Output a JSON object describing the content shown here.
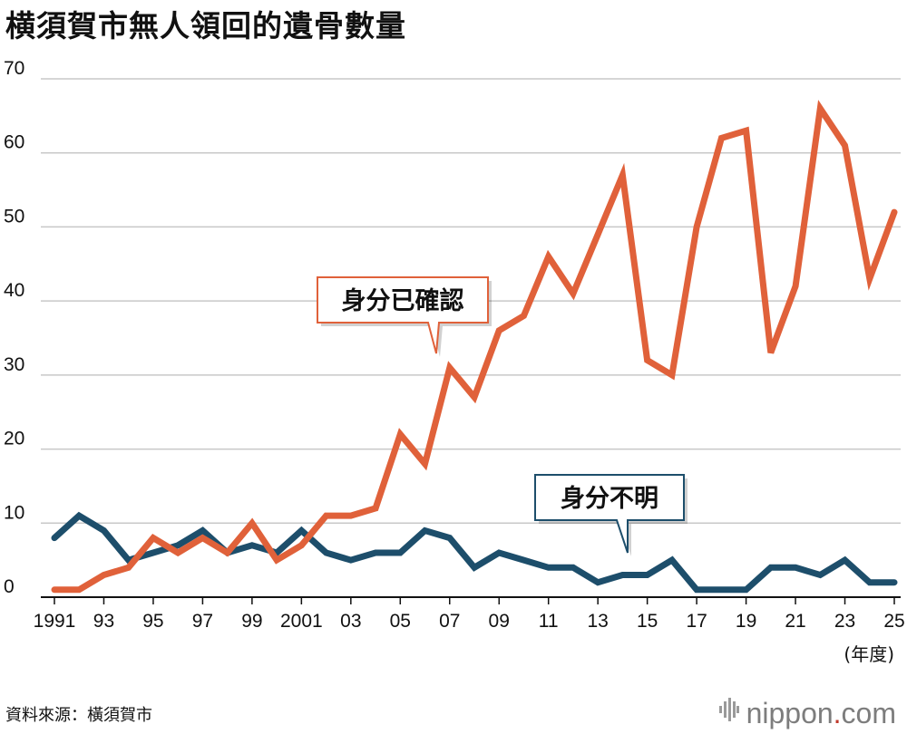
{
  "title": "横須賀市無人領回的遺骨數量",
  "source": "資料來源：橫須賀市",
  "brand": {
    "name": "nippon",
    "dot": ".",
    "suffix": "com"
  },
  "colors": {
    "identified": "#e0613a",
    "unidentified": "#1d4e6b",
    "grid": "#c8c8c8",
    "axis": "#111111"
  },
  "chart_data": {
    "type": "line",
    "title": "横須賀市無人領回的遺骨數量",
    "x": [
      1991,
      1992,
      1993,
      1994,
      1995,
      1996,
      1997,
      1998,
      1999,
      2000,
      2001,
      2002,
      2003,
      2004,
      2005,
      2006,
      2007,
      2008,
      2009,
      2010,
      2011,
      2012,
      2013,
      2014,
      2015,
      2016,
      2017,
      2018,
      2019,
      2020,
      2021,
      2022,
      2023,
      2024,
      2025
    ],
    "x_tick_values": [
      1991,
      1993,
      1995,
      1997,
      1999,
      2001,
      2003,
      2005,
      2007,
      2009,
      2011,
      2013,
      2015,
      2017,
      2019,
      2021,
      2023,
      2025
    ],
    "x_tick_labels": [
      "1991",
      "93",
      "95",
      "97",
      "99",
      "2001",
      "03",
      "05",
      "07",
      "09",
      "11",
      "13",
      "15",
      "17",
      "19",
      "21",
      "23",
      "25"
    ],
    "x_unit_label": "(年度)",
    "ylim": [
      0,
      70
    ],
    "y_ticks": [
      0,
      10,
      20,
      30,
      40,
      50,
      60,
      70
    ],
    "grid": true,
    "series": [
      {
        "name": "身分已確認",
        "color": "#e0613a",
        "values": [
          1,
          1,
          3,
          4,
          8,
          6,
          8,
          6,
          10,
          5,
          7,
          11,
          11,
          12,
          22,
          18,
          31,
          27,
          36,
          38,
          46,
          41,
          49,
          57,
          32,
          30,
          50,
          62,
          63,
          33,
          42,
          66,
          61,
          43,
          52
        ]
      },
      {
        "name": "身分不明",
        "color": "#1d4e6b",
        "values": [
          8,
          11,
          9,
          5,
          6,
          7,
          9,
          6,
          7,
          6,
          9,
          6,
          5,
          6,
          6,
          9,
          8,
          4,
          6,
          5,
          4,
          4,
          2,
          3,
          3,
          5,
          1,
          1,
          1,
          4,
          4,
          3,
          5,
          2,
          2
        ]
      }
    ]
  }
}
